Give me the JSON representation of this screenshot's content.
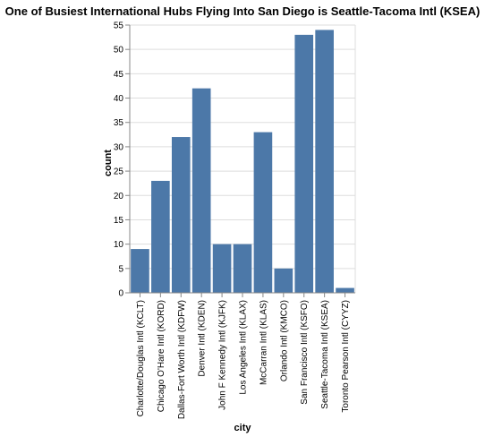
{
  "chart_data": {
    "type": "bar",
    "title": "One of Busiest International Hubs Flying Into San Diego is Seattle-Tacoma Intl (KSEA)",
    "xlabel": "city",
    "ylabel": "count",
    "ylim": [
      0,
      55
    ],
    "yticks": [
      0,
      5,
      10,
      15,
      20,
      25,
      30,
      35,
      40,
      45,
      50,
      55
    ],
    "grid": true,
    "bar_color": "#4c78a8",
    "categories": [
      "Charlotte/Douglas Intl (KCLT)",
      "Chicago O'Hare Intl (KORD)",
      "Dallas-Fort Worth Intl (KDFW)",
      "Denver Intl (KDEN)",
      "John F Kennedy Intl (KJFK)",
      "Los Angeles Intl (KLAX)",
      "McCarran Intl (KLAS)",
      "Orlando Intl (KMCO)",
      "San Francisco Intl (KSFO)",
      "Seattle-Tacoma Intl (KSEA)",
      "Toronto Pearson Intl (CYYZ)"
    ],
    "values": [
      9,
      23,
      32,
      42,
      10,
      10,
      33,
      5,
      53,
      54,
      1
    ]
  }
}
